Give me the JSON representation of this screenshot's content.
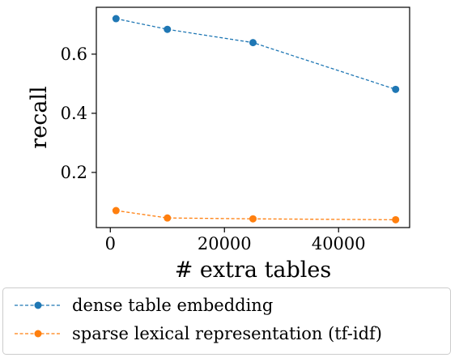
{
  "chart_data": {
    "type": "line",
    "xlabel": "# extra tables",
    "ylabel": "recall",
    "xlim": [
      -2450,
      52450
    ],
    "ylim": [
      0.0135,
      0.7585
    ],
    "xticks": [
      0,
      20000,
      40000
    ],
    "xtick_labels": [
      "0",
      "20000",
      "40000"
    ],
    "yticks": [
      0.2,
      0.4,
      0.6
    ],
    "ytick_labels": [
      "0.2",
      "0.4",
      "0.6"
    ],
    "grid": false,
    "legend_position": "below",
    "series": [
      {
        "name": "dense table embedding",
        "color": "#1f77b4",
        "x": [
          1000,
          10000,
          25000,
          50000
        ],
        "y": [
          0.72,
          0.684,
          0.639,
          0.481
        ]
      },
      {
        "name": "sparse lexical representation (tf-idf)",
        "color": "#ff7f0e",
        "x": [
          1000,
          10000,
          25000,
          50000
        ],
        "y": [
          0.071,
          0.046,
          0.043,
          0.04
        ]
      }
    ]
  }
}
